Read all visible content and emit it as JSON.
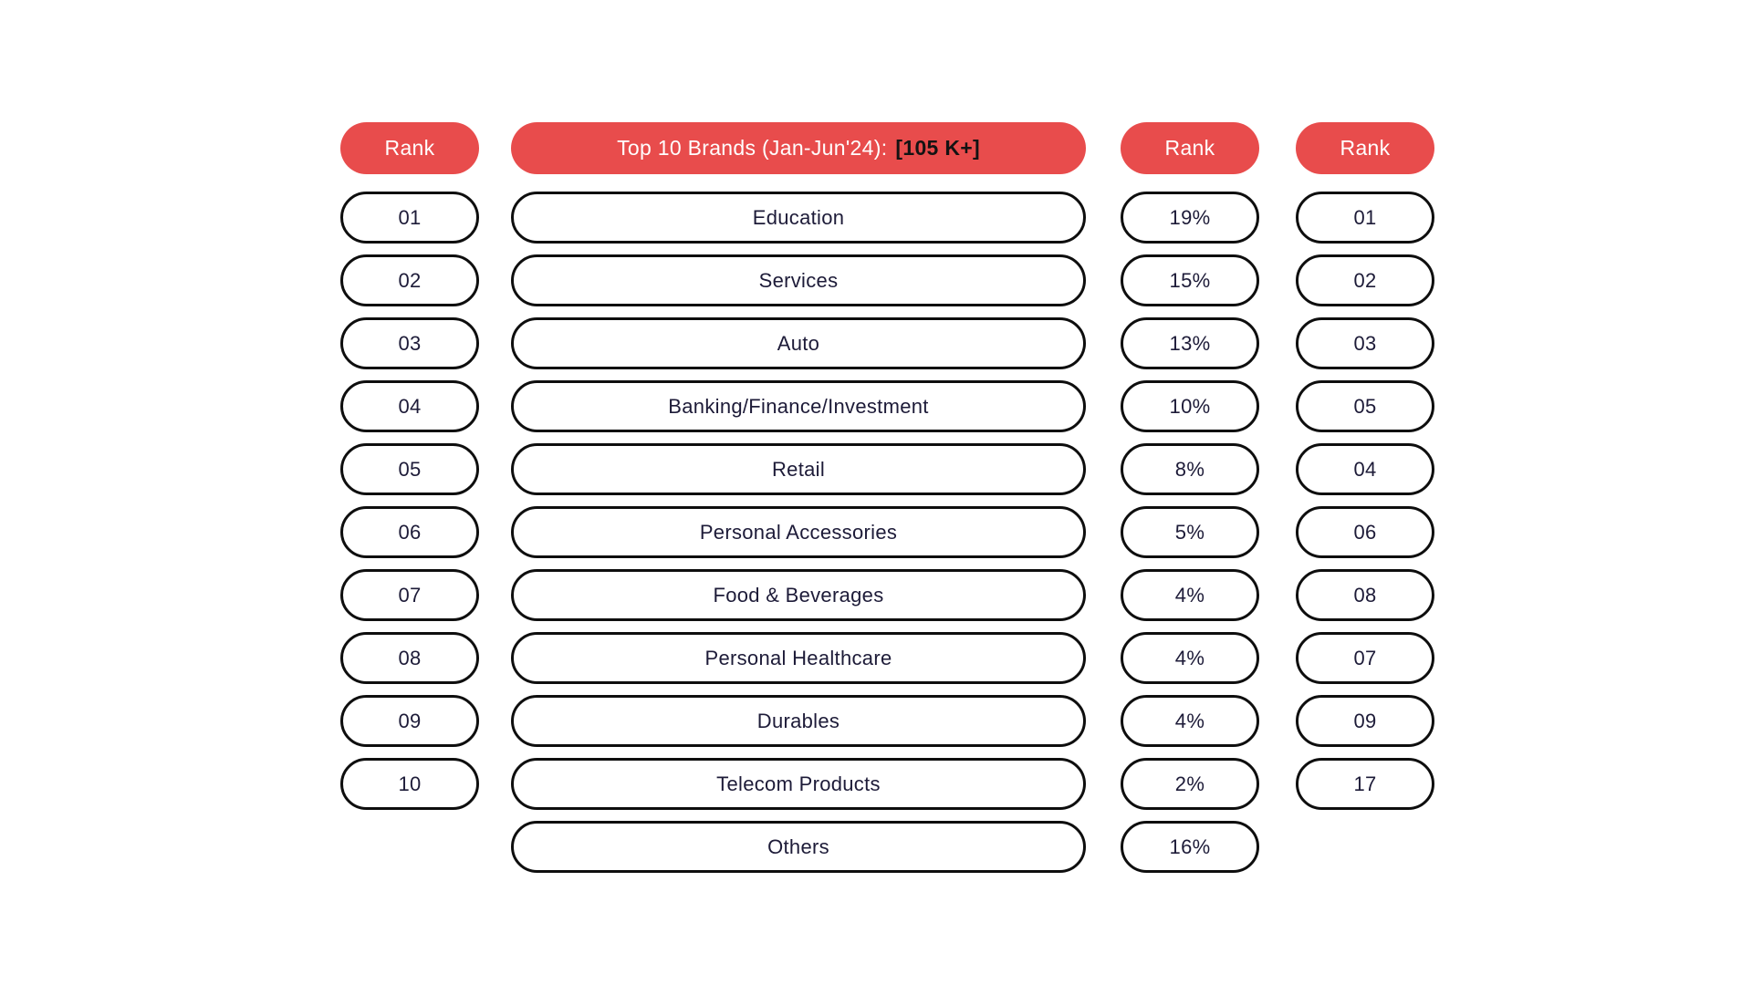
{
  "chart_data": {
    "type": "table",
    "title": "Top 10 Brands (Jan-Jun'24): [105 K+]",
    "column_headers": [
      "Rank",
      "Top 10 Brands (Jan-Jun'24): [105 K+]",
      "Rank",
      "Rank"
    ],
    "categories": [
      "Education",
      "Services",
      "Auto",
      "Banking/Finance/Investment",
      "Retail",
      "Personal Accessories",
      "Food & Beverages",
      "Personal Healthcare",
      "Durables",
      "Telecom Products",
      "Others"
    ],
    "share_percent": [
      19,
      15,
      13,
      10,
      8,
      5,
      4,
      4,
      4,
      2,
      16
    ],
    "rank_left_column": [
      "01",
      "02",
      "03",
      "04",
      "05",
      "06",
      "07",
      "08",
      "09",
      "10"
    ],
    "rank_right_column": [
      "01",
      "02",
      "03",
      "05",
      "04",
      "06",
      "08",
      "07",
      "09",
      "17"
    ]
  },
  "header": {
    "rank_left": "Rank",
    "brands_main": "Top 10 Brands (Jan-Jun'24):",
    "brands_badge": "[105 K+]",
    "rank_share": "Rank",
    "rank_right": "Rank"
  },
  "rank_left": [
    "01",
    "02",
    "03",
    "04",
    "05",
    "06",
    "07",
    "08",
    "09",
    "10"
  ],
  "brands": [
    "Education",
    "Services",
    "Auto",
    "Banking/Finance/Investment",
    "Retail",
    "Personal Accessories",
    "Food & Beverages",
    "Personal Healthcare",
    "Durables",
    "Telecom Products",
    "Others"
  ],
  "share": [
    "19%",
    "15%",
    "13%",
    "10%",
    "8%",
    "5%",
    "4%",
    "4%",
    "4%",
    "2%",
    "16%"
  ],
  "rank_right": [
    "01",
    "02",
    "03",
    "05",
    "04",
    "06",
    "08",
    "07",
    "09",
    "17"
  ],
  "colors": {
    "accent_red": "#E84C4C",
    "text_dark": "#1D1B38",
    "border_black": "#0E0E0E",
    "background": "#FFFFFF"
  }
}
